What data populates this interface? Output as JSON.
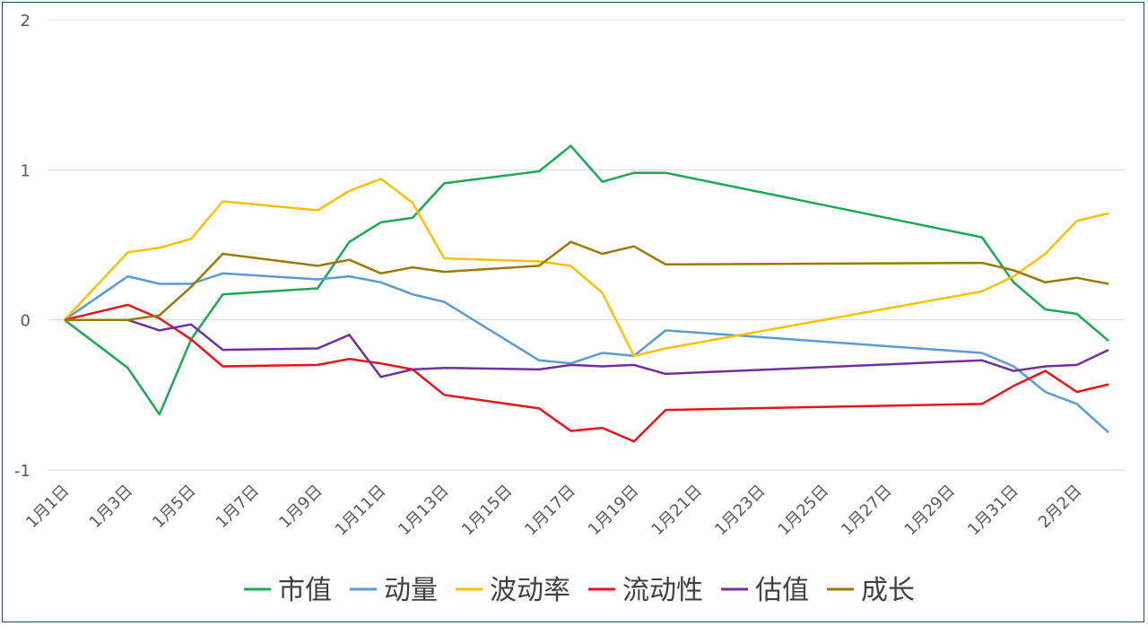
{
  "chart_data": {
    "type": "line",
    "title": "",
    "xlabel": "",
    "ylabel": "",
    "ylim": [
      -1,
      2
    ],
    "yticks": [
      "-1",
      "0",
      "1",
      "2"
    ],
    "grid": "horizontal",
    "legend_position": "bottom",
    "x": [
      "1月1日",
      "1月3日",
      "1月4日",
      "1月5日",
      "1月6日",
      "1月9日",
      "1月10日",
      "1月11日",
      "1月12日",
      "1月13日",
      "1月16日",
      "1月17日",
      "1月18日",
      "1月19日",
      "1月20日",
      "1月30日",
      "1月31日",
      "2月1日",
      "2月2日",
      "2月3日"
    ],
    "xtick_labels": [
      "1月1日",
      "1月3日",
      "1月5日",
      "1月7日",
      "1月9日",
      "1月11日",
      "1月13日",
      "1月15日",
      "1月17日",
      "1月19日",
      "1月21日",
      "1月23日",
      "1月25日",
      "1月27日",
      "1月29日",
      "1月31日",
      "2月2日"
    ],
    "series": [
      {
        "name": "市值",
        "color": "#1aaa55",
        "values": [
          0,
          -0.32,
          -0.63,
          -0.13,
          0.17,
          0.21,
          0.52,
          0.65,
          0.68,
          0.91,
          0.99,
          1.16,
          0.92,
          0.98,
          0.98,
          0.55,
          0.25,
          0.07,
          0.04,
          -0.14
        ]
      },
      {
        "name": "动量",
        "color": "#5b9bd5",
        "values": [
          0,
          0.29,
          0.24,
          0.24,
          0.31,
          0.27,
          0.29,
          0.25,
          0.17,
          0.12,
          -0.27,
          -0.29,
          -0.22,
          -0.24,
          -0.07,
          -0.22,
          -0.31,
          -0.48,
          -0.56,
          -0.75
        ]
      },
      {
        "name": "波动率",
        "color": "#ffc000",
        "values": [
          0,
          0.45,
          0.48,
          0.54,
          0.79,
          0.73,
          0.86,
          0.94,
          0.78,
          0.41,
          0.39,
          0.36,
          0.18,
          -0.24,
          -0.19,
          0.19,
          0.29,
          0.44,
          0.66,
          0.71
        ]
      },
      {
        "name": "流动性",
        "color": "#e8141b",
        "values": [
          0,
          0.1,
          0.01,
          -0.13,
          -0.31,
          -0.3,
          -0.26,
          -0.29,
          -0.33,
          -0.5,
          -0.59,
          -0.74,
          -0.72,
          -0.81,
          -0.6,
          -0.56,
          -0.44,
          -0.34,
          -0.48,
          -0.43
        ]
      },
      {
        "name": "估值",
        "color": "#7030a0",
        "values": [
          0,
          0,
          -0.07,
          -0.03,
          -0.2,
          -0.19,
          -0.1,
          -0.38,
          -0.33,
          -0.32,
          -0.33,
          -0.3,
          -0.31,
          -0.3,
          -0.36,
          -0.27,
          -0.34,
          -0.31,
          -0.3,
          -0.2
        ]
      },
      {
        "name": "成长",
        "color": "#9c7a00",
        "values": [
          0,
          0,
          0.03,
          0.22,
          0.44,
          0.36,
          0.4,
          0.31,
          0.35,
          0.32,
          0.36,
          0.52,
          0.44,
          0.49,
          0.37,
          0.38,
          0.33,
          0.25,
          0.28,
          0.24
        ]
      }
    ]
  }
}
